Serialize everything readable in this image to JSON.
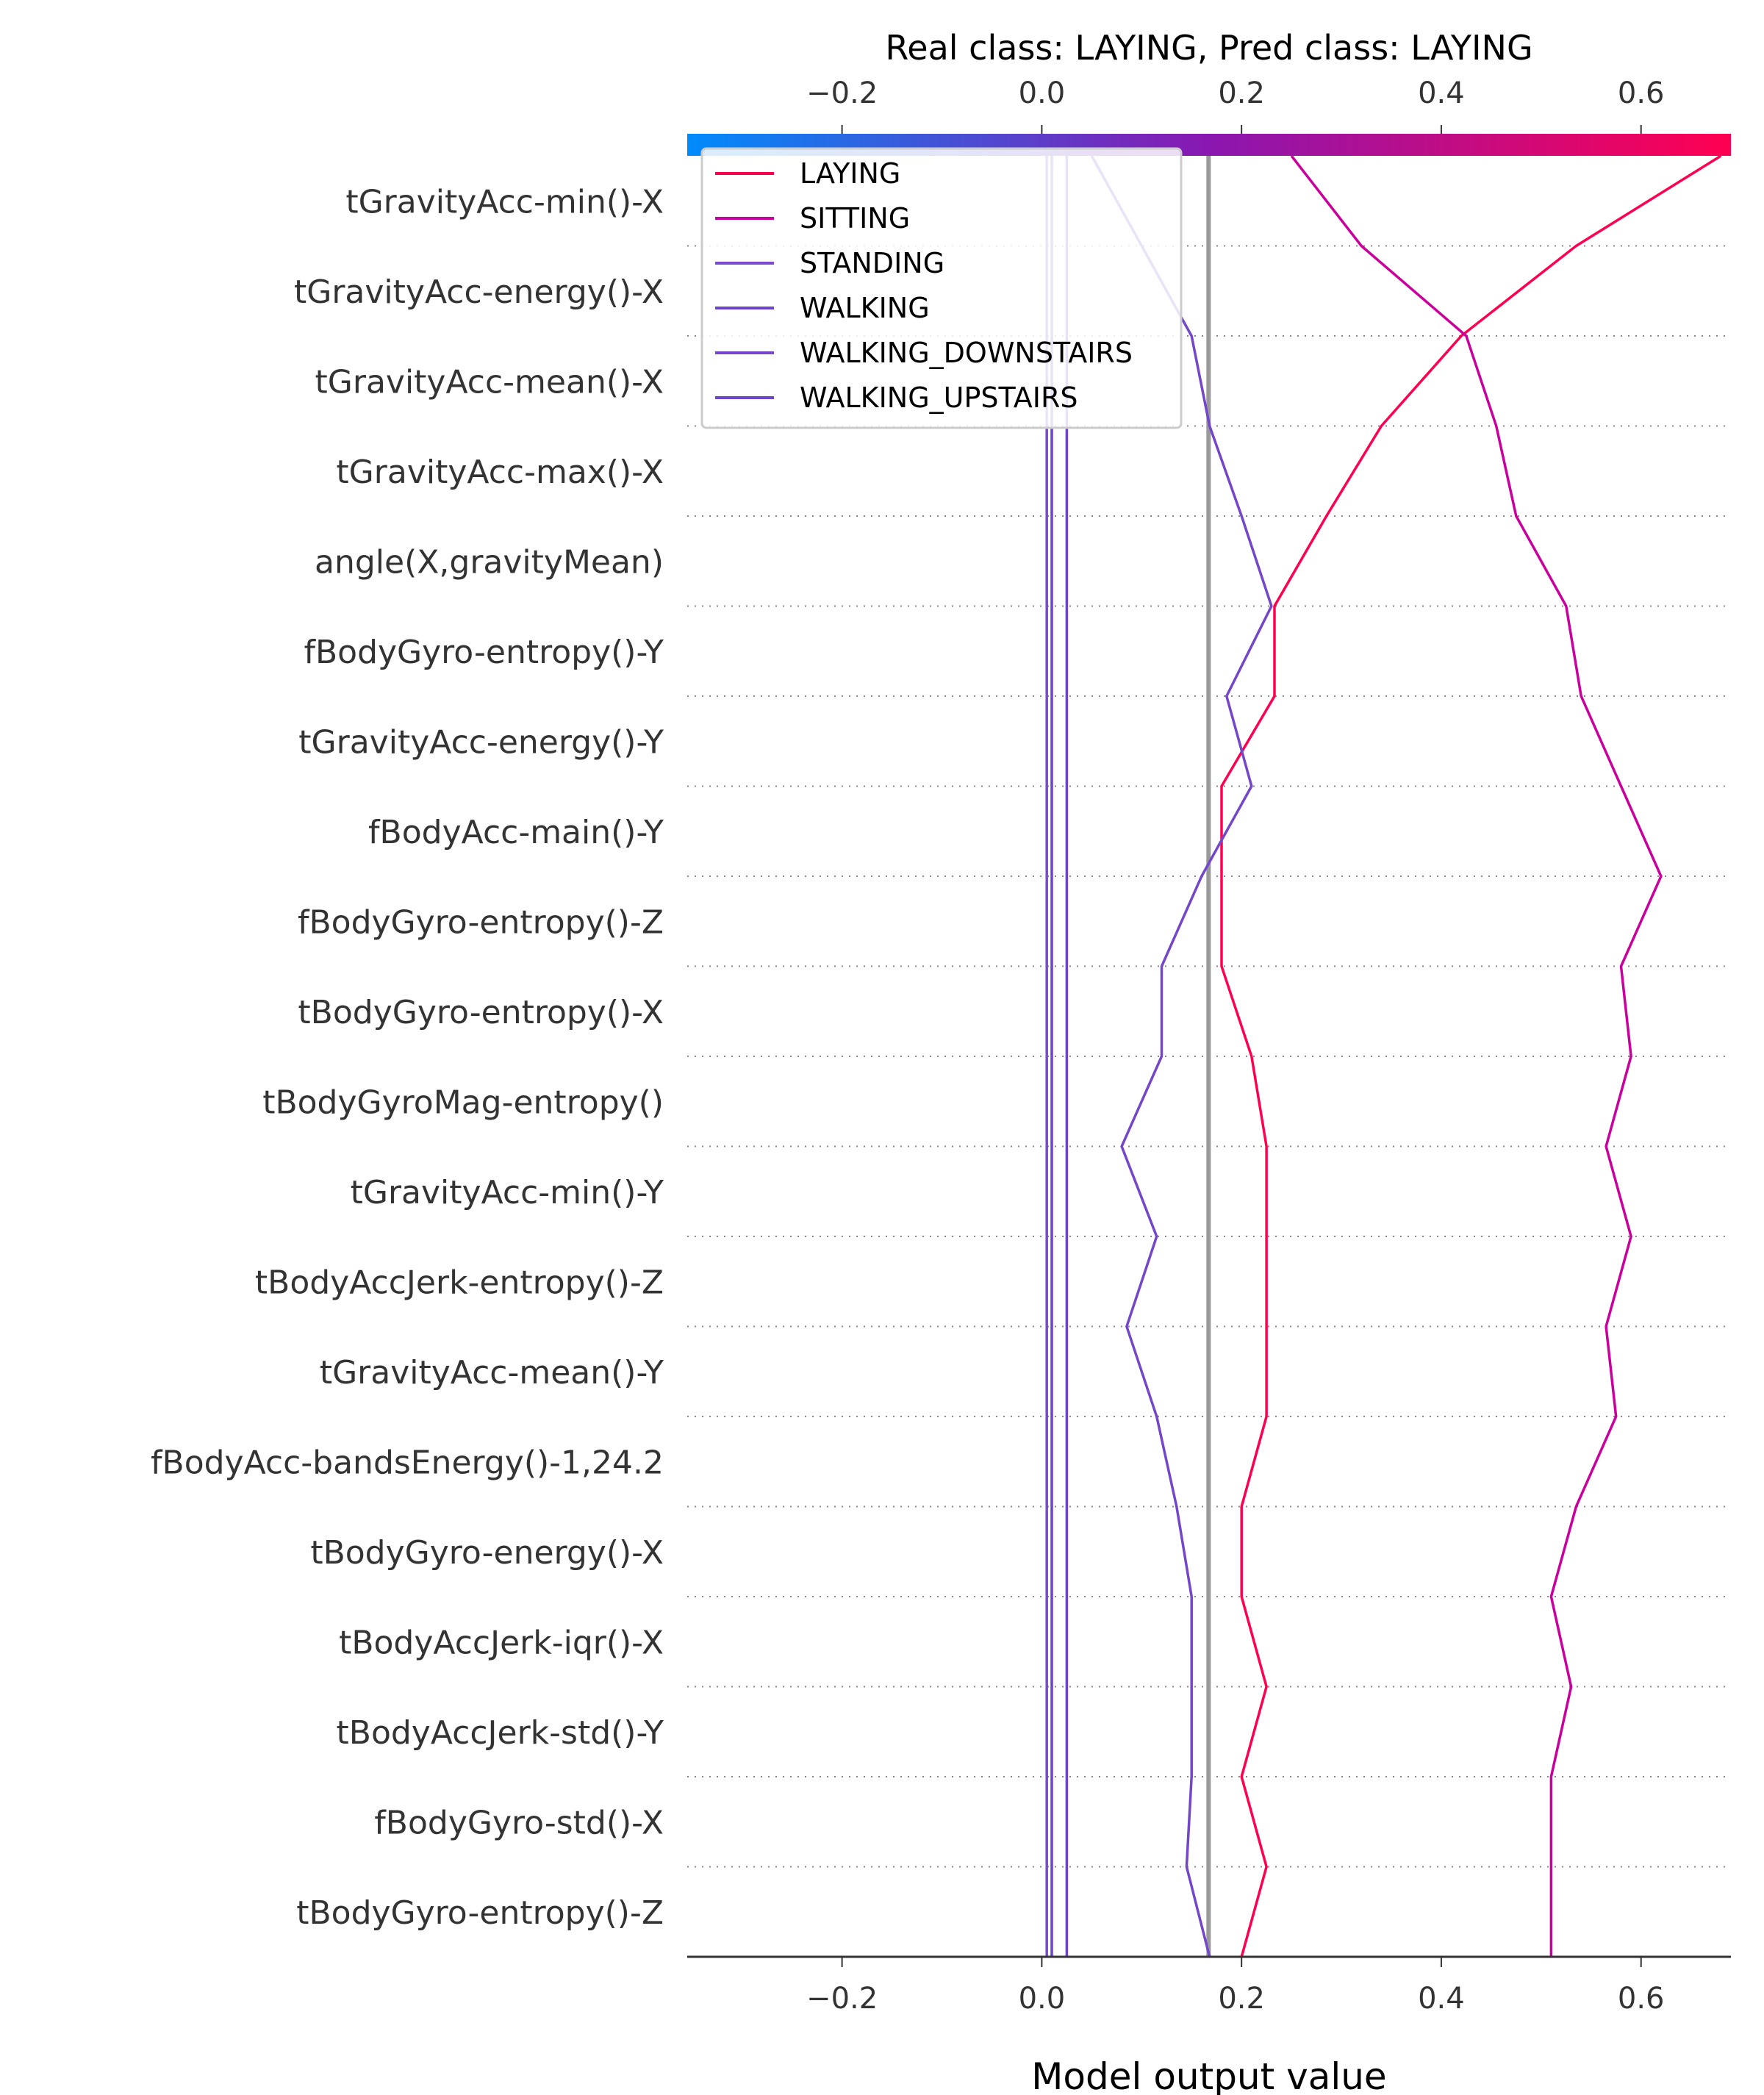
{
  "chart_data": {
    "type": "line",
    "title": "Real class: LAYING, Pred class: LAYING",
    "xlabel": "Model output value",
    "xlim": [
      -0.355,
      0.69
    ],
    "xticks": [
      -0.2,
      0.0,
      0.2,
      0.4,
      0.6
    ],
    "xtick_labels": [
      "−0.2",
      "0.0",
      "0.2",
      "0.4",
      "0.6"
    ],
    "base_value": 0.167,
    "colorbar": {
      "low_color": "#008bfb",
      "mid_color": "#8a17b0",
      "high_color": "#ff0051"
    },
    "grid": "dotted-horizontal",
    "legend_position": "upper-left",
    "features": [
      "tGravityAcc-min()-X",
      "tGravityAcc-energy()-X",
      "tGravityAcc-mean()-X",
      "tGravityAcc-max()-X",
      "angle(X,gravityMean)",
      "fBodyGyro-entropy()-Y",
      "tGravityAcc-energy()-Y",
      "fBodyAcc-main()-Y",
      "fBodyGyro-entropy()-Z",
      "tBodyGyro-entropy()-X",
      "tBodyGyroMag-entropy()",
      "tGravityAcc-min()-Y",
      "tBodyAccJerk-entropy()-Z",
      "tGravityAcc-mean()-Y",
      "fBodyAcc-bandsEnergy()-1,24.2",
      "tBodyGyro-energy()-X",
      "tBodyAccJerk-iqr()-X",
      "tBodyAccJerk-std()-Y",
      "fBodyGyro-std()-X",
      "tBodyGyro-entropy()-Z"
    ],
    "series": [
      {
        "name": "LAYING",
        "color": "#ff0051",
        "values": [
          0.68,
          0.535,
          0.42,
          0.34,
          0.285,
          0.233,
          0.233,
          0.18,
          0.18,
          0.18,
          0.21,
          0.225,
          0.225,
          0.225,
          0.225,
          0.2,
          0.2,
          0.225,
          0.2,
          0.225,
          0.2
        ]
      },
      {
        "name": "SITTING",
        "color": "#c9009c",
        "values": [
          0.25,
          0.32,
          0.425,
          0.455,
          0.475,
          0.525,
          0.54,
          0.58,
          0.62,
          0.58,
          0.59,
          0.565,
          0.59,
          0.565,
          0.575,
          0.535,
          0.51,
          0.53,
          0.51,
          0.51,
          0.51
        ]
      },
      {
        "name": "STANDING",
        "color": "#7b4ad0",
        "values": [
          0.005,
          0.005,
          0.005,
          0.005,
          0.005,
          0.005,
          0.005,
          0.005,
          0.005,
          0.005,
          0.005,
          0.005,
          0.005,
          0.005,
          0.005,
          0.005,
          0.005,
          0.005,
          0.005,
          0.005,
          0.005
        ]
      },
      {
        "name": "WALKING",
        "color": "#6a45cc",
        "values": [
          0.01,
          0.01,
          0.01,
          0.01,
          0.01,
          0.01,
          0.01,
          0.01,
          0.01,
          0.01,
          0.01,
          0.01,
          0.01,
          0.01,
          0.01,
          0.01,
          0.01,
          0.01,
          0.01,
          0.01,
          0.01
        ]
      },
      {
        "name": "WALKING_DOWNSTAIRS",
        "color": "#7446c9",
        "values": [
          0.05,
          0.1,
          0.15,
          0.168,
          0.2,
          0.23,
          0.185,
          0.21,
          0.16,
          0.12,
          0.12,
          0.08,
          0.115,
          0.085,
          0.115,
          0.135,
          0.15,
          0.15,
          0.15,
          0.145,
          0.168
        ]
      },
      {
        "name": "WALKING_UPSTAIRS",
        "color": "#6a45cc",
        "values": [
          0.025,
          0.025,
          0.025,
          0.025,
          0.025,
          0.025,
          0.025,
          0.025,
          0.025,
          0.025,
          0.025,
          0.025,
          0.025,
          0.025,
          0.025,
          0.025,
          0.025,
          0.025,
          0.025,
          0.025,
          0.025
        ]
      }
    ]
  }
}
